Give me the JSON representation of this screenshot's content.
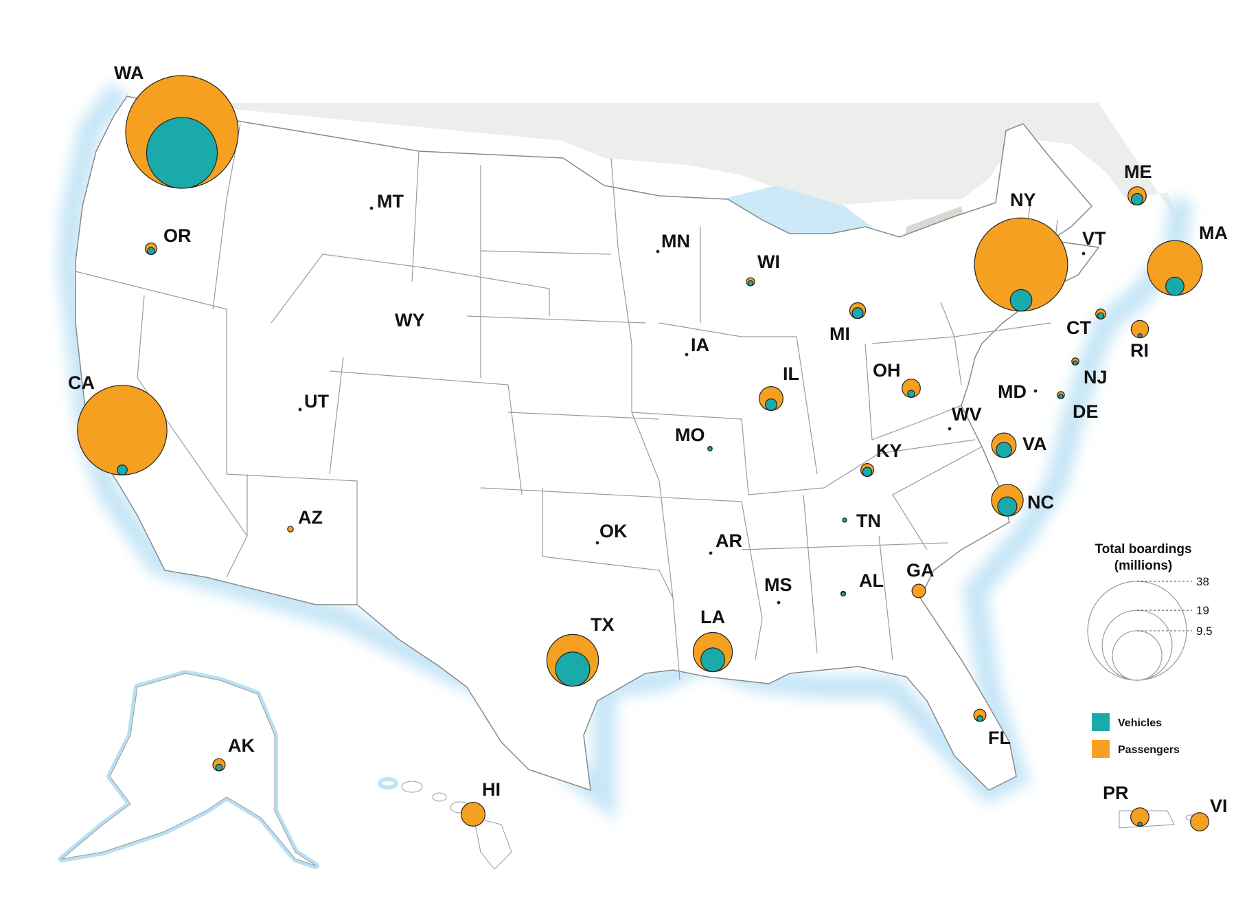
{
  "legend": {
    "title_line1": "Total boardings",
    "title_line2": "(millions)",
    "scale_values": [
      "38",
      "19",
      "9.5"
    ],
    "vehicles_label": "Vehicles",
    "passengers_label": "Passengers"
  },
  "colors": {
    "passengers": "#F5A020",
    "vehicles": "#1AAAAA",
    "land": "#ffffff",
    "water": "#D5ECF8",
    "canada": "#D8D9D3",
    "border": "#999999"
  },
  "chart_data": {
    "type": "proportional-symbol-map",
    "series": [
      "Passengers",
      "Vehicles"
    ],
    "unit": "millions",
    "scale_reference": [
      38,
      19,
      9.5
    ],
    "states": [
      {
        "code": "WA",
        "passengers": 38,
        "vehicles": 15
      },
      {
        "code": "NY",
        "passengers": 26,
        "vehicles": 1.4
      },
      {
        "code": "CA",
        "passengers": 24,
        "vehicles": 0.3
      },
      {
        "code": "MA",
        "passengers": 9,
        "vehicles": 1
      },
      {
        "code": "TX",
        "passengers": 8,
        "vehicles": 3.5
      },
      {
        "code": "LA",
        "passengers": 4.6,
        "vehicles": 1.7
      },
      {
        "code": "NC",
        "passengers": 3,
        "vehicles": 1.1
      },
      {
        "code": "VA",
        "passengers": 1.8,
        "vehicles": 0.7
      },
      {
        "code": "HI",
        "passengers": 1.7,
        "vehicles": 0
      },
      {
        "code": "IL",
        "passengers": 1.7,
        "vehicles": 0.4
      },
      {
        "code": "VI",
        "passengers": 1,
        "vehicles": 0
      },
      {
        "code": "OH",
        "passengers": 1,
        "vehicles": 0.15
      },
      {
        "code": "ME",
        "passengers": 1,
        "vehicles": 0.4
      },
      {
        "code": "RI",
        "passengers": 0.9,
        "vehicles": 0.03
      },
      {
        "code": "PR",
        "passengers": 1,
        "vehicles": 0.02
      },
      {
        "code": "MI",
        "passengers": 0.75,
        "vehicles": 0.35
      },
      {
        "code": "GA",
        "passengers": 0.55,
        "vehicles": 0
      },
      {
        "code": "KY",
        "passengers": 0.5,
        "vehicles": 0.25
      },
      {
        "code": "FL",
        "passengers": 0.45,
        "vehicles": 0.1
      },
      {
        "code": "AK",
        "passengers": 0.45,
        "vehicles": 0.13
      },
      {
        "code": "OR",
        "passengers": 0.4,
        "vehicles": 0.15
      },
      {
        "code": "CT",
        "passengers": 0.3,
        "vehicles": 0.12
      },
      {
        "code": "WI",
        "passengers": 0.2,
        "vehicles": 0.08
      },
      {
        "code": "NJ",
        "passengers": 0.15,
        "vehicles": 0.05
      },
      {
        "code": "DE",
        "passengers": 0.15,
        "vehicles": 0.06
      },
      {
        "code": "AZ",
        "passengers": 0.1,
        "vehicles": 0
      },
      {
        "code": "AL",
        "passengers": 0.07,
        "vehicles": 0.03
      },
      {
        "code": "MO",
        "passengers": 0.06,
        "vehicles": 0.03
      },
      {
        "code": "TN",
        "passengers": 0.05,
        "vehicles": 0.02
      },
      {
        "code": "MD",
        "passengers": 0.02,
        "vehicles": 0.02
      },
      {
        "code": "AR",
        "passengers": 0.01,
        "vehicles": 0.01
      },
      {
        "code": "VT",
        "passengers": 0.02,
        "vehicles": 0
      },
      {
        "code": "MS",
        "passengers": 0.01,
        "vehicles": 0
      },
      {
        "code": "MN",
        "passengers": 0.005,
        "vehicles": 0
      },
      {
        "code": "IA",
        "passengers": 0.005,
        "vehicles": 0
      },
      {
        "code": "MT",
        "passengers": 0.002,
        "vehicles": 0
      },
      {
        "code": "UT",
        "passengers": 0.001,
        "vehicles": 0
      },
      {
        "code": "OK",
        "passengers": 0.001,
        "vehicles": 0
      },
      {
        "code": "WV",
        "passengers": 0.001,
        "vehicles": 0
      }
    ]
  }
}
